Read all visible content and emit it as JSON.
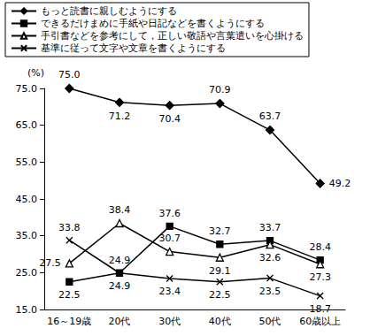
{
  "chart_data": {
    "type": "line",
    "y_label": "(%)",
    "categories": [
      "16～19歳",
      "20代",
      "30代",
      "40代",
      "50代",
      "60歳以上"
    ],
    "series": [
      {
        "name": "もっと読書に親しむようにする",
        "color": "#000000",
        "marker": "diamond",
        "values": [
          75.0,
          71.2,
          70.4,
          70.9,
          63.7,
          49.2
        ],
        "value_labels": [
          "75.0",
          "71.2",
          "70.4",
          "70.9",
          "63.7",
          "49.2"
        ]
      },
      {
        "name": "できるだけまめに手紙や日記などを書くようにする",
        "color": "#000000",
        "marker": "square",
        "values": [
          22.5,
          24.9,
          37.6,
          32.7,
          33.7,
          28.4
        ],
        "value_labels": [
          "22.5",
          "24.9",
          "37.6",
          "32.7",
          "33.7",
          "28.4"
        ]
      },
      {
        "name": "手引書などを参考にして，正しい敬語や言葉遣いを心掛ける",
        "color": "#000000",
        "marker": "triangle_open",
        "values": [
          27.5,
          38.4,
          30.7,
          29.1,
          32.6,
          27.3
        ],
        "value_labels": [
          "27.5",
          "38.4",
          "30.7",
          "29.1",
          "32.6",
          "27.3"
        ]
      },
      {
        "name": "基準に従って文字や文章を書くようにする",
        "color": "#000000",
        "marker": "x",
        "values": [
          33.8,
          24.9,
          23.4,
          22.5,
          23.5,
          18.7
        ],
        "value_labels": [
          "33.8",
          "24.9",
          "23.4",
          "22.5",
          "23.5",
          "18.7"
        ]
      }
    ],
    "ylim": [
      15,
      75
    ],
    "yticks": [
      {
        "value": 15,
        "label": "15.0"
      },
      {
        "value": 25,
        "label": "25.0"
      },
      {
        "value": 35,
        "label": "35.0"
      },
      {
        "value": 45,
        "label": "45.0"
      },
      {
        "value": 55,
        "label": "55.0"
      },
      {
        "value": 65,
        "label": "65.0"
      },
      {
        "value": 75,
        "label": "75.0"
      }
    ],
    "grid": false,
    "legend": "top",
    "data_labels": true
  }
}
